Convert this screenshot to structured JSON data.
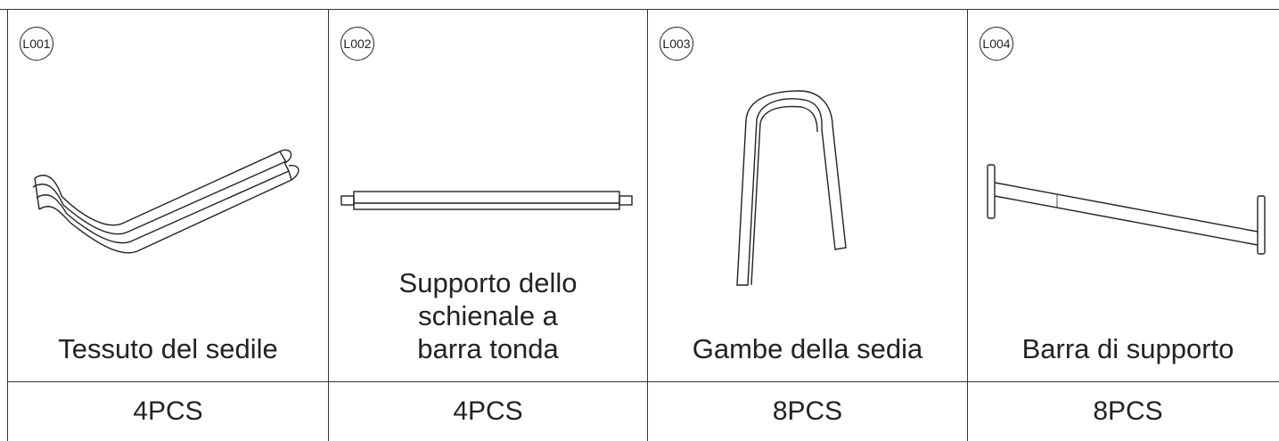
{
  "parts": [
    {
      "code": "L001",
      "name": [
        "Tessuto del sedile"
      ],
      "quantity": "4PCS"
    },
    {
      "code": "L002",
      "name": [
        "Supporto dello",
        "schienale a",
        "barra tonda"
      ],
      "quantity": "4PCS"
    },
    {
      "code": "L003",
      "name": [
        "Gambe della sedia"
      ],
      "quantity": "8PCS"
    },
    {
      "code": "L004",
      "name": [
        "Barra di supporto"
      ],
      "quantity": "8PCS"
    }
  ]
}
